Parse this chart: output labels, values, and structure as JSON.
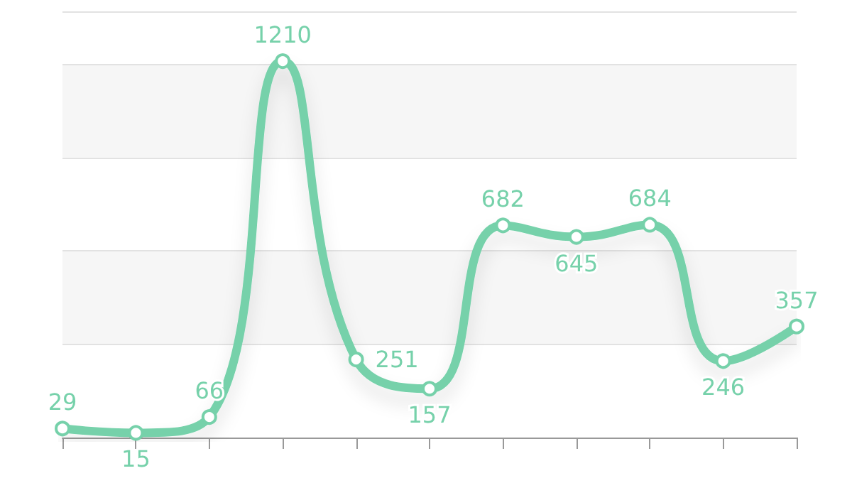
{
  "chart_data": {
    "type": "line",
    "categories": [
      null,
      null,
      null,
      null,
      null,
      null,
      null,
      null,
      null,
      null,
      null
    ],
    "series": [
      {
        "color": "#76d1aa",
        "values": [
          29,
          15,
          66,
          1210,
          251,
          157,
          682,
          645,
          684,
          246,
          357
        ]
      }
    ],
    "data_labels": true,
    "marker": "circle",
    "grid": "y",
    "ylim": [
      0,
      1370
    ],
    "yticks": [
      {
        "value": 0,
        "label": null
      },
      {
        "value": 300,
        "label": null
      },
      {
        "value": 600,
        "label": null
      },
      {
        "value": 900,
        "label": null
      },
      {
        "value": 1200,
        "label": null
      }
    ]
  }
}
